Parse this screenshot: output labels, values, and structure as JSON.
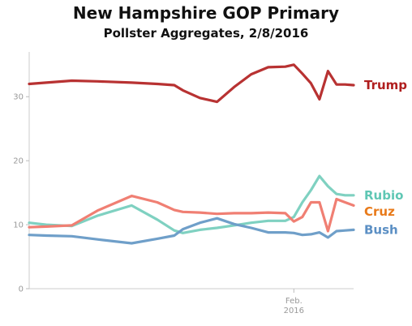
{
  "chart_data": {
    "type": "line",
    "title": "New Hampshire GOP Primary",
    "subtitle": "Pollster Aggregates, 2/8/2016",
    "xlabel": "",
    "ylabel": "",
    "ylim": [
      0,
      37
    ],
    "yticks": [
      0,
      10,
      20,
      30
    ],
    "x_tick_label": [
      "Feb.",
      "2016"
    ],
    "x": [
      "2016-01-01",
      "2016-01-03",
      "2016-01-06",
      "2016-01-09",
      "2016-01-13",
      "2016-01-16",
      "2016-01-18",
      "2016-01-19",
      "2016-01-21",
      "2016-01-23",
      "2016-01-25",
      "2016-01-27",
      "2016-01-29",
      "2016-01-31",
      "2016-02-01",
      "2016-02-02",
      "2016-02-03",
      "2016-02-04",
      "2016-02-05",
      "2016-02-06",
      "2016-02-07",
      "2016-02-08"
    ],
    "series": [
      {
        "name": "Trump",
        "color": "#b83232",
        "values": [
          32.0,
          32.2,
          32.5,
          32.4,
          32.2,
          32.0,
          31.8,
          31.0,
          29.8,
          29.2,
          31.5,
          33.5,
          34.6,
          34.7,
          35.0,
          33.6,
          32.1,
          29.6,
          34.0,
          31.9,
          31.9,
          31.8
        ]
      },
      {
        "name": "Rubio",
        "color": "#7fd1c1",
        "values": [
          10.3,
          10.0,
          9.8,
          11.4,
          13.0,
          10.8,
          9.1,
          8.7,
          9.2,
          9.5,
          9.9,
          10.3,
          10.6,
          10.6,
          11.2,
          13.5,
          15.4,
          17.6,
          16.0,
          14.8,
          14.6,
          14.6
        ]
      },
      {
        "name": "Cruz",
        "color": "#f07f73",
        "values": [
          9.6,
          9.7,
          9.9,
          12.2,
          14.5,
          13.5,
          12.3,
          12.0,
          11.9,
          11.7,
          11.8,
          11.8,
          11.9,
          11.8,
          10.5,
          11.2,
          13.5,
          13.5,
          9.0,
          14.0,
          13.5,
          13.0
        ]
      },
      {
        "name": "Bush",
        "color": "#6f9fc9",
        "values": [
          8.4,
          8.3,
          8.2,
          7.7,
          7.1,
          7.8,
          8.3,
          9.3,
          10.3,
          11.0,
          10.1,
          9.5,
          8.8,
          8.8,
          8.7,
          8.4,
          8.5,
          8.8,
          8.0,
          9.0,
          9.1,
          9.2
        ]
      }
    ],
    "label_colors": {
      "Trump": "#b01e1e",
      "Rubio": "#5fc7b4",
      "Cruz": "#e87a1a",
      "Bush": "#5b8fc4"
    },
    "grid": false,
    "legend": "right-end labels"
  }
}
